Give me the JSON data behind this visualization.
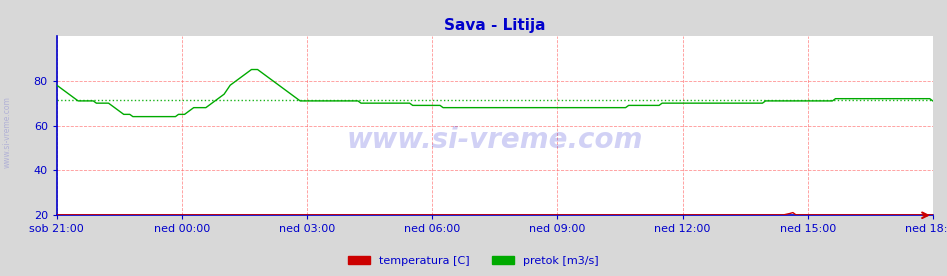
{
  "title": "Sava - Litija",
  "title_color": "#0000cc",
  "title_fontsize": 11,
  "bg_color": "#d8d8d8",
  "plot_bg_color": "#ffffff",
  "axis_color": "#0000cc",
  "grid_color": "#ff6666",
  "grid_style": "--",
  "grid_alpha": 0.7,
  "avg_line_color": "#00aa00",
  "avg_line_style": ":",
  "avg_value": 71.5,
  "ylim": [
    20,
    100
  ],
  "yticks": [
    20,
    40,
    60,
    80
  ],
  "x_tick_labels": [
    "sob 21:00",
    "ned 00:00",
    "ned 03:00",
    "ned 06:00",
    "ned 09:00",
    "ned 12:00",
    "ned 15:00",
    "ned 18:00"
  ],
  "n_points": 289,
  "temp_color": "#cc0000",
  "flow_color": "#00aa00",
  "watermark": "www.si-vreme.com",
  "watermark_color": "#0000cc",
  "watermark_alpha": 0.18,
  "legend_temp_label": "temperatura [C]",
  "legend_flow_label": "pretok [m3/s]",
  "temp_data": [
    20.2,
    20.2,
    20.2,
    20.2,
    20.2,
    20.2,
    20.2,
    20.2,
    20.2,
    20.2,
    20.2,
    20.2,
    20.2,
    20.2,
    20.2,
    20.2,
    20.2,
    20.2,
    20.2,
    20.2,
    20.2,
    20.2,
    20.2,
    20.2,
    20.2,
    20.2,
    20.2,
    20.2,
    20.2,
    20.2,
    20.2,
    20.2,
    20.2,
    20.2,
    20.2,
    20.2,
    20.2,
    20.2,
    20.2,
    20.2,
    20.2,
    20.2,
    20.2,
    20.2,
    20.2,
    20.2,
    20.2,
    20.2,
    20.2,
    20.2,
    20.2,
    20.2,
    20.2,
    20.2,
    20.2,
    20.2,
    20.2,
    20.2,
    20.2,
    20.2,
    20.2,
    20.2,
    20.2,
    20.2,
    20.2,
    20.2,
    20.2,
    20.2,
    20.2,
    20.2,
    20.2,
    20.2,
    20.2,
    20.2,
    20.2,
    20.2,
    20.2,
    20.2,
    20.2,
    20.2,
    20.2,
    20.2,
    20.2,
    20.2,
    20.2,
    20.2,
    20.2,
    20.2,
    20.2,
    20.2,
    20.2,
    20.2,
    20.2,
    20.2,
    20.2,
    20.2,
    20.2,
    20.2,
    20.2,
    20.2,
    20.2,
    20.2,
    20.2,
    20.2,
    20.2,
    20.2,
    20.2,
    20.2,
    20.2,
    20.2,
    20.2,
    20.2,
    20.2,
    20.2,
    20.2,
    20.2,
    20.2,
    20.2,
    20.2,
    20.2,
    20.2,
    20.2,
    20.2,
    20.2,
    20.2,
    20.2,
    20.2,
    20.2,
    20.2,
    20.2,
    20.2,
    20.2,
    20.2,
    20.2,
    20.2,
    20.2,
    20.2,
    20.2,
    20.2,
    20.2,
    20.2,
    20.2,
    20.2,
    20.2,
    20.2,
    20.2,
    20.2,
    20.2,
    20.2,
    20.2,
    20.2,
    20.2,
    20.2,
    20.2,
    20.2,
    20.2,
    20.2,
    20.2,
    20.2,
    20.2,
    20.2,
    20.2,
    20.2,
    20.2,
    20.2,
    20.2,
    20.2,
    20.2,
    20.2,
    20.2,
    20.2,
    20.2,
    20.2,
    20.2,
    20.2,
    20.2,
    20.2,
    20.2,
    20.2,
    20.2,
    20.2,
    20.2,
    20.2,
    20.2,
    20.2,
    20.2,
    20.2,
    20.2,
    20.2,
    20.2,
    20.2,
    20.2,
    20.2,
    20.2,
    20.2,
    20.2,
    20.2,
    20.2,
    20.2,
    20.2,
    20.2,
    20.2,
    20.2,
    20.2,
    20.2,
    20.2,
    20.2,
    20.2,
    20.2,
    20.2,
    20.2,
    20.2,
    20.2,
    20.2,
    20.2,
    20.2,
    20.2,
    20.2,
    20.2,
    20.2,
    20.2,
    20.2,
    20.2,
    20.2,
    20.2,
    20.2,
    20.2,
    20.2,
    20.2,
    20.2,
    20.2,
    20.2,
    20.2,
    20.2,
    20.2,
    20.2,
    20.2,
    20.2,
    20.2,
    20.2,
    20.5,
    20.8,
    21.2,
    20.2,
    20.2,
    20.2,
    20.2,
    20.2,
    20.2,
    20.2,
    20.2,
    20.2,
    20.2,
    20.2,
    20.2,
    20.2,
    20.2,
    20.2,
    20.2,
    20.2,
    20.2,
    20.2,
    20.2,
    20.2,
    20.2,
    20.2,
    20.2,
    20.2,
    20.2,
    20.2,
    20.2,
    20.2,
    20.2,
    20.2,
    20.2,
    20.2,
    20.2,
    20.2,
    20.2,
    20.2,
    20.2,
    20.2,
    20.2,
    20.2,
    20.2,
    20.2,
    20.2,
    20.2,
    20.2
  ],
  "flow_data": [
    78,
    77,
    76,
    75,
    74,
    73,
    72,
    71,
    71,
    71,
    71,
    71,
    71,
    70,
    70,
    70,
    70,
    70,
    69,
    68,
    67,
    66,
    65,
    65,
    65,
    64,
    64,
    64,
    64,
    64,
    64,
    64,
    64,
    64,
    64,
    64,
    64,
    64,
    64,
    64,
    65,
    65,
    65,
    66,
    67,
    68,
    68,
    68,
    68,
    68,
    69,
    70,
    71,
    72,
    73,
    74,
    76,
    78,
    79,
    80,
    81,
    82,
    83,
    84,
    85,
    85,
    85,
    84,
    83,
    82,
    81,
    80,
    79,
    78,
    77,
    76,
    75,
    74,
    73,
    72,
    71,
    71,
    71,
    71,
    71,
    71,
    71,
    71,
    71,
    71,
    71,
    71,
    71,
    71,
    71,
    71,
    71,
    71,
    71,
    71,
    70,
    70,
    70,
    70,
    70,
    70,
    70,
    70,
    70,
    70,
    70,
    70,
    70,
    70,
    70,
    70,
    70,
    69,
    69,
    69,
    69,
    69,
    69,
    69,
    69,
    69,
    69,
    68,
    68,
    68,
    68,
    68,
    68,
    68,
    68,
    68,
    68,
    68,
    68,
    68,
    68,
    68,
    68,
    68,
    68,
    68,
    68,
    68,
    68,
    68,
    68,
    68,
    68,
    68,
    68,
    68,
    68,
    68,
    68,
    68,
    68,
    68,
    68,
    68,
    68,
    68,
    68,
    68,
    68,
    68,
    68,
    68,
    68,
    68,
    68,
    68,
    68,
    68,
    68,
    68,
    68,
    68,
    68,
    68,
    68,
    68,
    68,
    68,
    69,
    69,
    69,
    69,
    69,
    69,
    69,
    69,
    69,
    69,
    69,
    70,
    70,
    70,
    70,
    70,
    70,
    70,
    70,
    70,
    70,
    70,
    70,
    70,
    70,
    70,
    70,
    70,
    70,
    70,
    70,
    70,
    70,
    70,
    70,
    70,
    70,
    70,
    70,
    70,
    70,
    70,
    70,
    70,
    70,
    71,
    71,
    71,
    71,
    71,
    71,
    71,
    71,
    71,
    71,
    71,
    71,
    71,
    71,
    71,
    71,
    71,
    71,
    71,
    71,
    71,
    71,
    71,
    72,
    72,
    72,
    72,
    72,
    72,
    72,
    72,
    72,
    72,
    72,
    72,
    72,
    72,
    72,
    72,
    72,
    72,
    72,
    72,
    72,
    72,
    72,
    72,
    72,
    72,
    72,
    72,
    72,
    72,
    72,
    72,
    71
  ]
}
